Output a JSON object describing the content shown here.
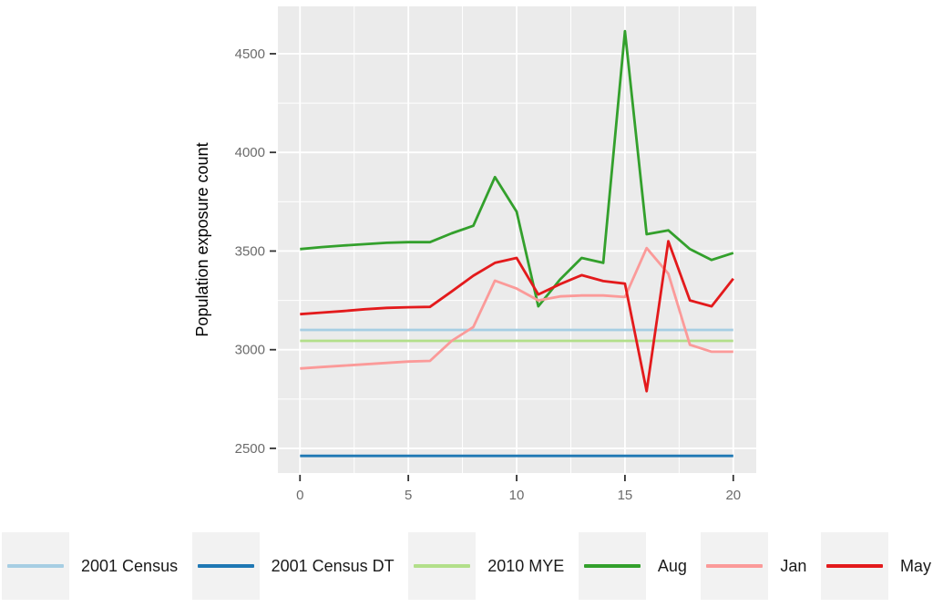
{
  "figure": {
    "background": "#ffffff",
    "panel_background": "#ebebeb",
    "grid_color": "#ffffff",
    "tick_color": "#333333",
    "axis_text_color": "#6b6b6b",
    "axis_title_color": "#000000",
    "legend_key_background": "#f2f2f2"
  },
  "chart_data": {
    "type": "line",
    "title": "",
    "xlabel": "",
    "ylabel": "Population exposure count",
    "grid": true,
    "legend_position": "bottom",
    "x": [
      0,
      1,
      2,
      3,
      4,
      5,
      6,
      7,
      8,
      9,
      10,
      11,
      12,
      13,
      14,
      15,
      16,
      17,
      18,
      19,
      20
    ],
    "xlim": [
      -1.02,
      21.06
    ],
    "ylim": [
      2375,
      4740
    ],
    "x_ticks": [
      0,
      5,
      10,
      15,
      20
    ],
    "y_ticks": [
      2500,
      3000,
      3500,
      4000,
      4500
    ],
    "x_minor": [
      2.5,
      7.5,
      12.5,
      17.5
    ],
    "y_minor": [
      2750,
      3250,
      3750,
      4250
    ],
    "series": [
      {
        "name": "2001 Census",
        "color": "#a6cee3",
        "values": [
          3100,
          3100,
          3100,
          3100,
          3100,
          3100,
          3100,
          3100,
          3100,
          3100,
          3100,
          3100,
          3100,
          3100,
          3100,
          3100,
          3100,
          3100,
          3100,
          3100,
          3100
        ]
      },
      {
        "name": "2001 Census DT",
        "color": "#1f78b4",
        "values": [
          2462,
          2462,
          2462,
          2462,
          2462,
          2462,
          2462,
          2462,
          2462,
          2462,
          2462,
          2462,
          2462,
          2462,
          2462,
          2462,
          2462,
          2462,
          2462,
          2462,
          2462
        ]
      },
      {
        "name": "2010 MYE",
        "color": "#b2df8a",
        "values": [
          3045,
          3045,
          3045,
          3045,
          3045,
          3045,
          3045,
          3045,
          3045,
          3045,
          3045,
          3045,
          3045,
          3045,
          3045,
          3045,
          3045,
          3045,
          3045,
          3045,
          3045
        ]
      },
      {
        "name": "Aug",
        "color": "#33a02c",
        "values": [
          3510,
          3520,
          3528,
          3535,
          3542,
          3545,
          3545,
          3590,
          3628,
          3875,
          3700,
          3220,
          3355,
          3465,
          3440,
          4615,
          3585,
          3605,
          3510,
          3455,
          3490
        ]
      },
      {
        "name": "Jan",
        "color": "#fb9a99",
        "values": [
          2905,
          2912,
          2919,
          2926,
          2933,
          2940,
          2943,
          3045,
          3115,
          3350,
          3310,
          3250,
          3270,
          3275,
          3275,
          3267,
          3515,
          3385,
          3025,
          2990,
          2990
        ]
      },
      {
        "name": "May",
        "color": "#e31a1c",
        "values": [
          3180,
          3188,
          3196,
          3205,
          3212,
          3215,
          3217,
          3295,
          3375,
          3440,
          3465,
          3280,
          3332,
          3378,
          3348,
          3335,
          2790,
          3550,
          3250,
          3220,
          3360
        ]
      }
    ]
  }
}
